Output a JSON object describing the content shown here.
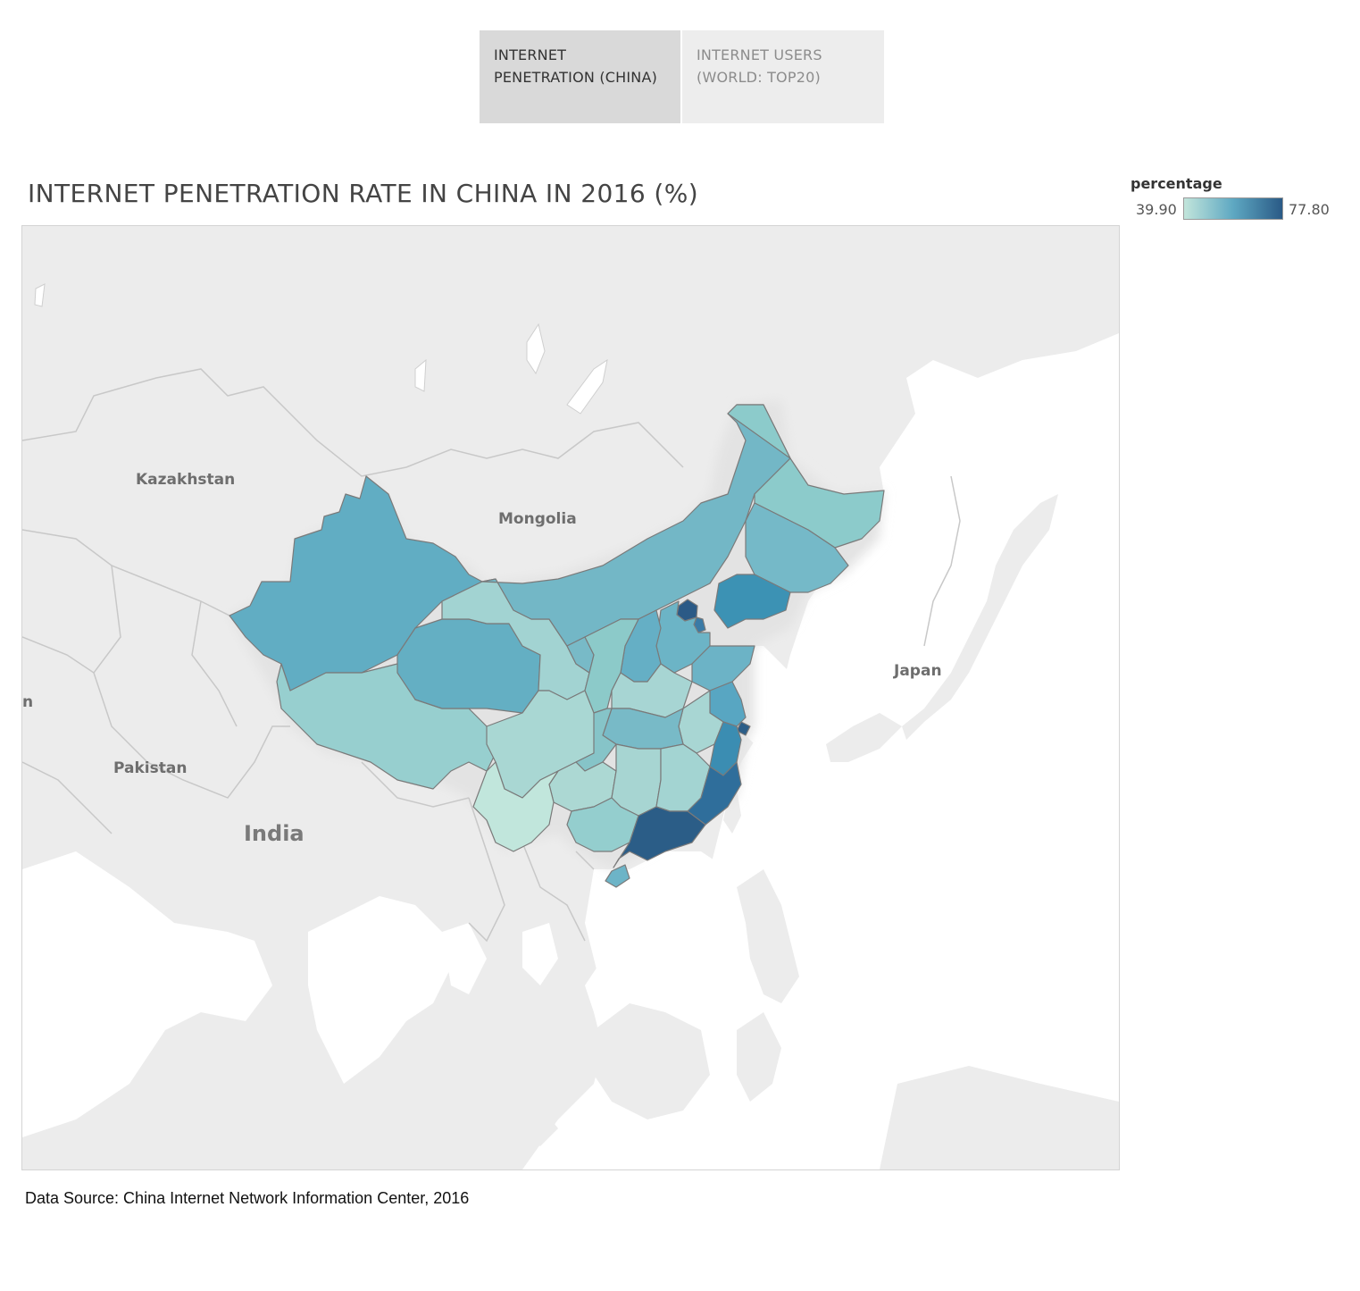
{
  "tabs": [
    {
      "line1": "INTERNET",
      "line2": "PENETRATION (CHINA)"
    },
    {
      "line1": "INTERNET USERS",
      "line2": "(WORLD: TOP20)"
    }
  ],
  "title": "INTERNET PENETRATION RATE IN CHINA IN 2016 (%)",
  "legend": {
    "title": "percentage",
    "min": "39.90",
    "max": "77.80",
    "color_low": "#c2e5db",
    "color_mid": "#5ea8c2",
    "color_high": "#2a5a86"
  },
  "map_labels": {
    "kazakhstan": "Kazakhstan",
    "mongolia": "Mongolia",
    "japan": "Japan",
    "pakistan": "Pakistan",
    "india": "India",
    "edge_n": "n"
  },
  "source": "Data Source: China Internet Network Information Center, 2016"
}
